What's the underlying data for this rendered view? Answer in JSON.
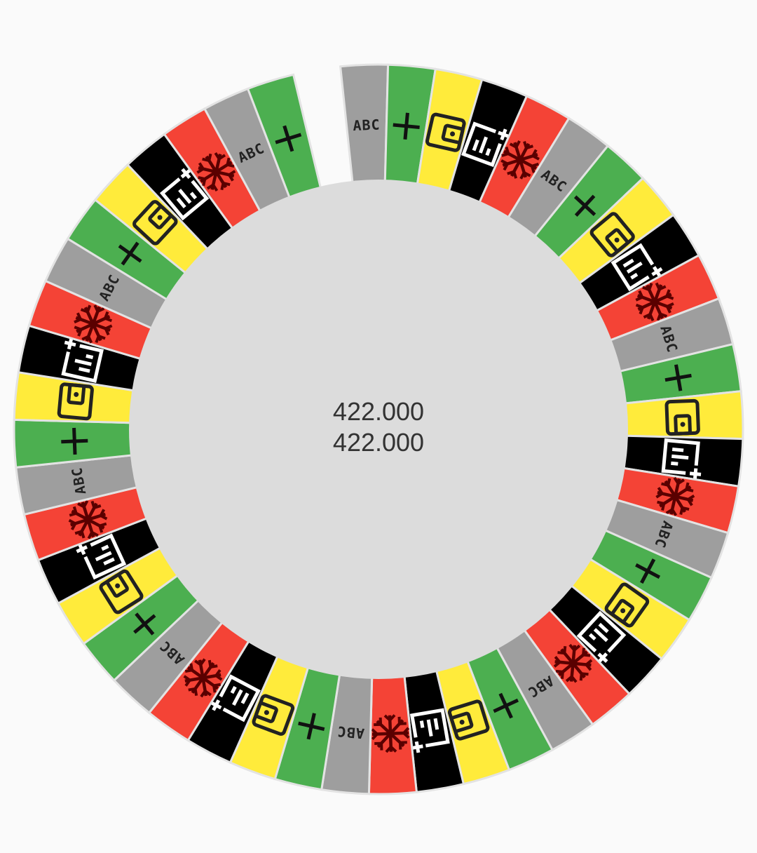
{
  "center": {
    "line1": "422.000",
    "line2": "422.000"
  },
  "segment_count": 47,
  "segment_pattern": [
    "gray",
    "green",
    "yellow",
    "black",
    "red"
  ],
  "segment_icons": {
    "gray": "abc-text-icon",
    "green": "plus-icon",
    "yellow": "wallet-icon",
    "black": "add-chart-icon",
    "red": "snowflake-icon"
  },
  "abc_label": "ABC",
  "colors": {
    "gray": "#9e9e9e",
    "green": "#4caf50",
    "yellow": "#ffeb3b",
    "black": "#000000",
    "red": "#f44336",
    "center_fill": "#dcdcdc",
    "separator": "#e3e3e3",
    "background": "#fafafa",
    "icon_dark": "#222222",
    "icon_snow": "#5a0000",
    "icon_white": "#ffffff"
  }
}
